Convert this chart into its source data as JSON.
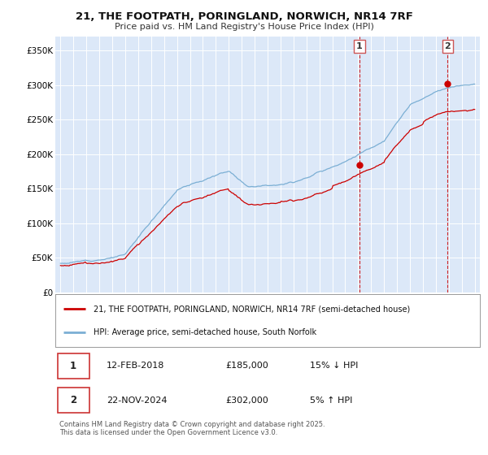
{
  "title": "21, THE FOOTPATH, PORINGLAND, NORWICH, NR14 7RF",
  "subtitle": "Price paid vs. HM Land Registry's House Price Index (HPI)",
  "red_label": "21, THE FOOTPATH, PORINGLAND, NORWICH, NR14 7RF (semi-detached house)",
  "blue_label": "HPI: Average price, semi-detached house, South Norfolk",
  "annotation1_date": "12-FEB-2018",
  "annotation1_price": "£185,000",
  "annotation1_hpi": "15% ↓ HPI",
  "annotation2_date": "22-NOV-2024",
  "annotation2_price": "£302,000",
  "annotation2_hpi": "5% ↑ HPI",
  "footer": "Contains HM Land Registry data © Crown copyright and database right 2025.\nThis data is licensed under the Open Government Licence v3.0.",
  "ylim": [
    0,
    370000
  ],
  "yticks": [
    0,
    50000,
    100000,
    150000,
    200000,
    250000,
    300000,
    350000
  ],
  "ytick_labels": [
    "£0",
    "£50K",
    "£100K",
    "£150K",
    "£200K",
    "£250K",
    "£300K",
    "£350K"
  ],
  "red_color": "#cc0000",
  "blue_color": "#7bafd4",
  "background_color": "#dce8f8",
  "grid_color": "#ffffff",
  "t1": 2018.1,
  "t2": 2024.9,
  "price1": 185000,
  "price2": 302000
}
